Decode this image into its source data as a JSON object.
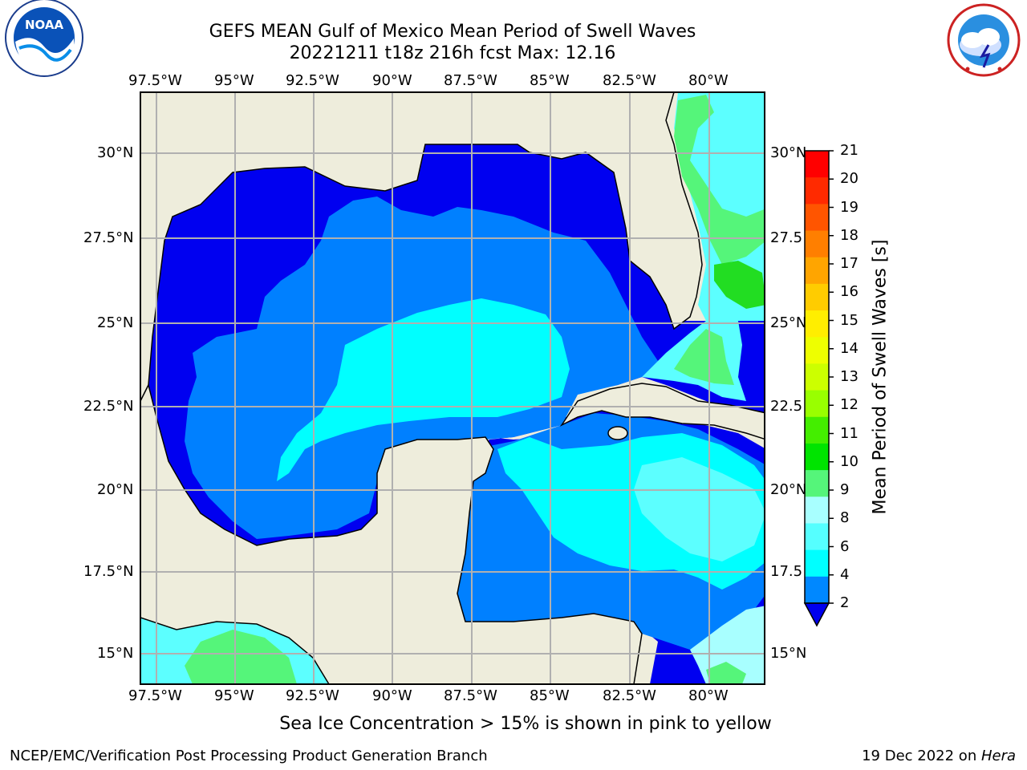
{
  "header": {
    "title_line1": "GEFS MEAN Gulf of Mexico Mean Period of Swell Waves",
    "title_line2": "20221211 t18z 216h fcst   Max: 12.16"
  },
  "logos": {
    "left": {
      "name": "noaa-logo",
      "text": "NOAA",
      "ring_text": "NATIONAL OCEANIC AND ATMOSPHERIC ADMINISTRATION · U.S. DEPARTMENT OF COMMERCE"
    },
    "right": {
      "name": "nws-logo",
      "ring_text": "NATIONAL WEATHER SERVICE"
    }
  },
  "axes": {
    "lon_labels": [
      "97.5°W",
      "95°W",
      "92.5°W",
      "90°W",
      "87.5°W",
      "85°W",
      "82.5°W",
      "80°W"
    ],
    "lat_labels_left": [
      "30°N",
      "27.5°N",
      "25°N",
      "22.5°N",
      "20°N",
      "17.5°N",
      "15°N"
    ],
    "lat_labels_right": [
      "30°N",
      "27.5",
      "25°N",
      "22.5",
      "20°N",
      "17.5",
      "15°N"
    ]
  },
  "colorbar": {
    "label": "Mean Period of Swell Waves [s]",
    "ticks": [
      "21",
      "20",
      "19",
      "18",
      "17",
      "16",
      "15",
      "14",
      "13",
      "12",
      "11",
      "10",
      "9",
      "8",
      "6",
      "4",
      "2"
    ],
    "colors": [
      "#ff0000",
      "#ff2a00",
      "#ff5500",
      "#ff7f00",
      "#ffa500",
      "#ffcc00",
      "#ffee00",
      "#eeff00",
      "#ccff00",
      "#99ff00",
      "#44ee00",
      "#00e400",
      "#55f57a",
      "#a8ffff",
      "#55ffff",
      "#00ffff",
      "#0088ff",
      "#0000ee"
    ]
  },
  "map_colors": {
    "land": "#eeeddc",
    "deep_blue": "#0000f0",
    "blue": "#0080ff",
    "cyan": "#00ffff",
    "light_cyan": "#5cffff",
    "pale_cyan": "#a8ffff",
    "green": "#55f57a",
    "bright_green": "#22dd22",
    "grid": "#b0b0b0"
  },
  "caption": "Sea Ice Concentration > 15% is shown in pink to yellow",
  "footer": {
    "left": "NCEP/EMC/Verification Post Processing Product Generation Branch",
    "right_prefix": "19 Dec 2022 on ",
    "right_machine": "Hera"
  }
}
